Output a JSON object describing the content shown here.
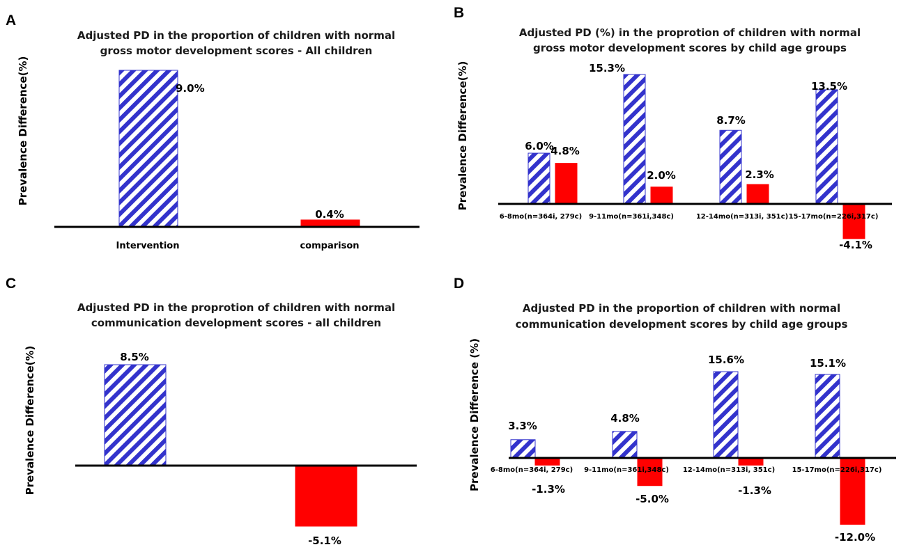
{
  "colors": {
    "intervention": "#3333cc",
    "comparison": "#ff0000",
    "axis": "#000000"
  },
  "chart_data": [
    {
      "panel": "A",
      "type": "bar",
      "title": [
        "Adjusted PD in  the proportion of children with normal",
        "gross motor development scores - All children"
      ],
      "ylabel": "Prevalence Difference(%)",
      "categories": [
        "Intervention",
        "comparison"
      ],
      "values": [
        9.0,
        0.4
      ],
      "labels": [
        "9.0%",
        "0.4%"
      ],
      "styles": [
        "hatch",
        "solid"
      ],
      "ylim": [
        0,
        9.0
      ]
    },
    {
      "panel": "B",
      "type": "bar",
      "title": [
        "Adjusted PD (%)  in the proprotion of children  with normal",
        "gross motor development scores by child age groups"
      ],
      "ylabel": "Prevalence  Difference(%)",
      "categories": [
        "6-8mo(n=364i, 279c)",
        "9-11mo(n=361i,348c)",
        "12-14mo(n=313i, 351c)",
        "15-17mo(n=226i,317c)"
      ],
      "series": [
        {
          "style": "hatch",
          "values": [
            6.0,
            15.3,
            8.7,
            13.5
          ],
          "labels": [
            "6.0%",
            "15.3%",
            "8.7%",
            "13.5%"
          ]
        },
        {
          "style": "solid",
          "values": [
            4.8,
            2.0,
            2.3,
            -4.1
          ],
          "labels": [
            "4.8%",
            "2.0%",
            "2.3%",
            "-4.1%"
          ]
        }
      ],
      "ylim": [
        -4.1,
        15.3
      ]
    },
    {
      "panel": "C",
      "type": "bar",
      "title": [
        "Adjusted PD in the proprotion of children  with normal",
        "communication development scores  - all children"
      ],
      "ylabel": "Prevalence Difference(%)",
      "categories": [
        "",
        ""
      ],
      "values": [
        8.5,
        -5.1
      ],
      "labels": [
        "8.5%",
        "-5.1%"
      ],
      "styles": [
        "hatch",
        "solid"
      ],
      "ylim": [
        -5.1,
        8.5
      ]
    },
    {
      "panel": "D",
      "type": "bar",
      "title": [
        "Adjusted  PD in the proportion of children with   normal",
        "communication development scores by child age groups"
      ],
      "ylabel": "Prevalence Difference (%)",
      "categories": [
        "6-8mo(n=364i, 279c)",
        "9-11mo(n=361i,348c)",
        "12-14mo(n=313i, 351c)",
        "15-17mo(n=226i,317c)"
      ],
      "series": [
        {
          "style": "hatch",
          "values": [
            3.3,
            4.8,
            15.6,
            15.1
          ],
          "labels": [
            "3.3%",
            "4.8%",
            "15.6%",
            "15.1%"
          ]
        },
        {
          "style": "solid",
          "values": [
            -1.3,
            -5.0,
            -1.3,
            -12.0
          ],
          "labels": [
            "-1.3%",
            "-5.0%",
            "-1.3%",
            "-12.0%"
          ]
        }
      ],
      "ylim": [
        -12.0,
        15.6
      ]
    }
  ]
}
